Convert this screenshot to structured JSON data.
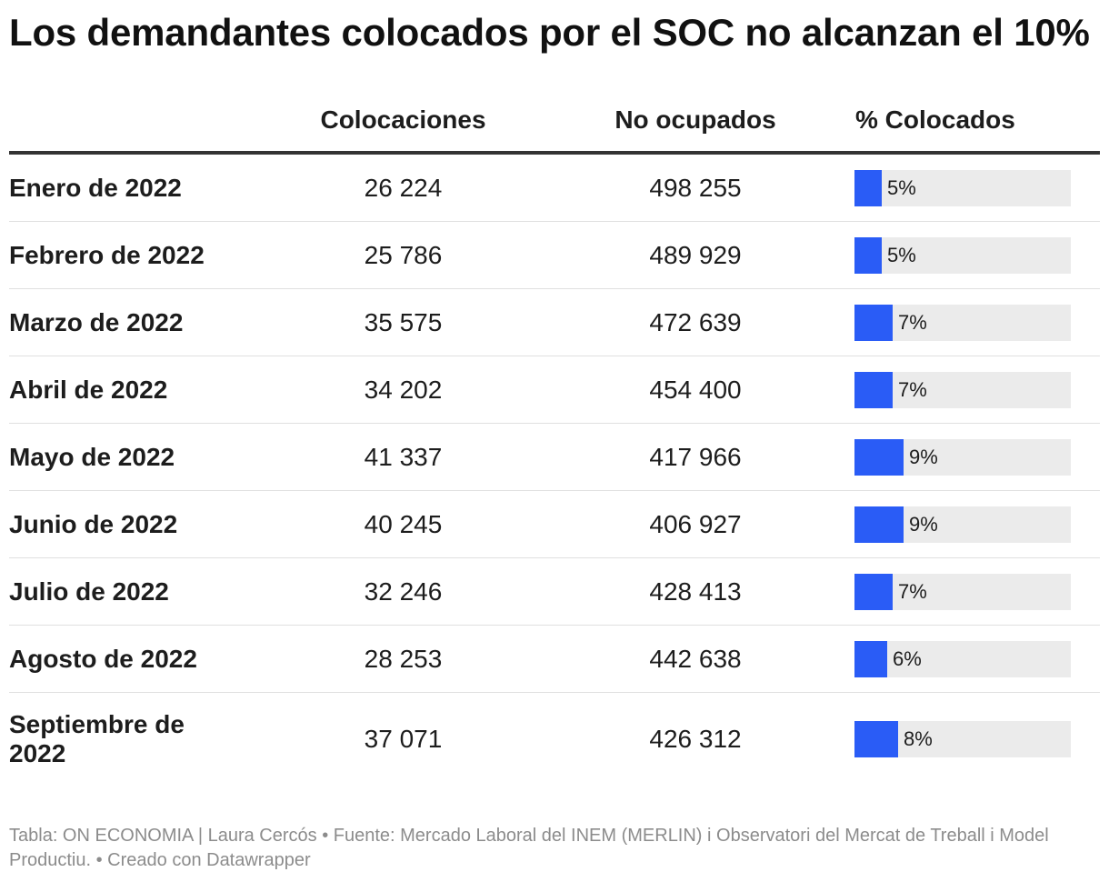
{
  "title": "Los demandantes colocados por el SOC no alcanzan el 10%",
  "columns": {
    "label": "",
    "colocaciones": "Colocaciones",
    "no_ocupados": "No ocupados",
    "pct": "% Colocados"
  },
  "chart_data": {
    "type": "table",
    "title": "Los demandantes colocados por el SOC no alcanzan el 10%",
    "bar_column": "% Colocados",
    "bar_max": 40,
    "bar_color": "#2a5cf6",
    "track_color": "#ebebeb",
    "rows": [
      {
        "label": "Enero de 2022",
        "colocaciones": "26 224",
        "no_ocupados": "498 255",
        "pct": 5,
        "pct_label": "5%"
      },
      {
        "label": "Febrero de 2022",
        "colocaciones": "25 786",
        "no_ocupados": "489 929",
        "pct": 5,
        "pct_label": "5%"
      },
      {
        "label": "Marzo de 2022",
        "colocaciones": "35 575",
        "no_ocupados": "472 639",
        "pct": 7,
        "pct_label": "7%"
      },
      {
        "label": "Abril de 2022",
        "colocaciones": "34 202",
        "no_ocupados": "454 400",
        "pct": 7,
        "pct_label": "7%"
      },
      {
        "label": "Mayo de 2022",
        "colocaciones": "41 337",
        "no_ocupados": "417 966",
        "pct": 9,
        "pct_label": "9%"
      },
      {
        "label": "Junio de 2022",
        "colocaciones": "40 245",
        "no_ocupados": "406 927",
        "pct": 9,
        "pct_label": "9%"
      },
      {
        "label": "Julio de 2022",
        "colocaciones": "32 246",
        "no_ocupados": "428 413",
        "pct": 7,
        "pct_label": "7%"
      },
      {
        "label": "Agosto de 2022",
        "colocaciones": "28 253",
        "no_ocupados": "442 638",
        "pct": 6,
        "pct_label": "6%"
      },
      {
        "label": "Septiembre de 2022",
        "colocaciones": "37 071",
        "no_ocupados": "426 312",
        "pct": 8,
        "pct_label": "8%"
      }
    ]
  },
  "footer": "Tabla: ON ECONOMIA | Laura Cercós • Fuente: Mercado Laboral del INEM (MERLIN) i Observatori del Mercat de Treball i Model Productiu. • Creado con Datawrapper"
}
